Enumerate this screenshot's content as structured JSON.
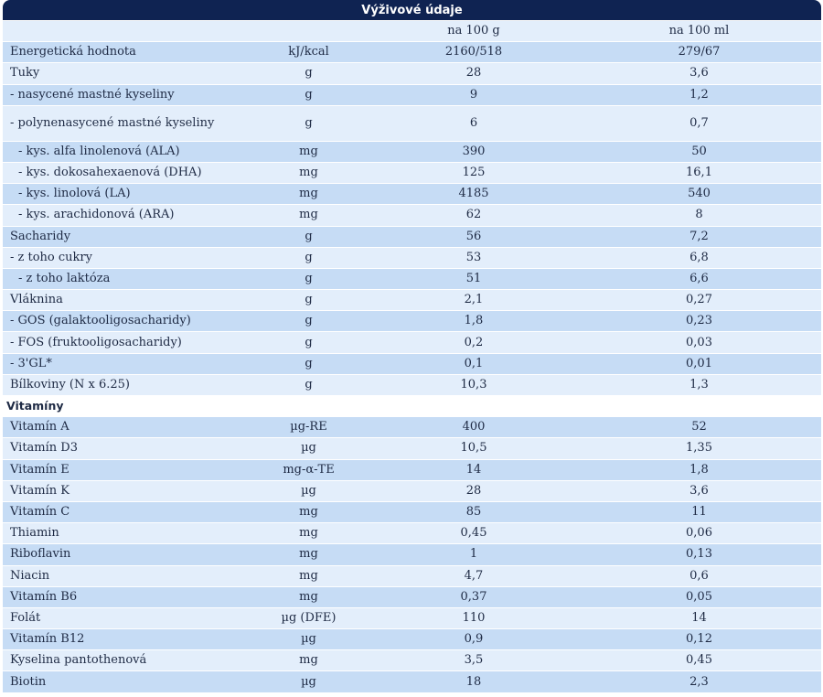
{
  "table": {
    "title": "Výživové údaje",
    "header": {
      "col1": "",
      "col2": "",
      "col3": "na 100 g",
      "col4": "na 100 ml"
    },
    "rows": [
      {
        "label": "Energetická hodnota",
        "unit": "kJ/kcal",
        "per100g": "2160/518",
        "per100ml": "279/67"
      },
      {
        "label": "Tuky",
        "unit": "g",
        "per100g": "28",
        "per100ml": "3,6"
      },
      {
        "label": "- nasycené mastné kyseliny",
        "unit": "g",
        "per100g": "9",
        "per100ml": "1,2"
      },
      {
        "label": "- polynenasycené mastné kyseliny",
        "unit": "g",
        "per100g": "6",
        "per100ml": "0,7"
      },
      {
        "label": "- kys. alfa linolenová (ALA)",
        "unit": "mg",
        "per100g": "390",
        "per100ml": "50"
      },
      {
        "label": "- kys. dokosahexaenová (DHA)",
        "unit": "mg",
        "per100g": "125",
        "per100ml": "16,1"
      },
      {
        "label": "- kys. linolová (LA)",
        "unit": "mg",
        "per100g": "4185",
        "per100ml": "540"
      },
      {
        "label": "- kys. arachidonová (ARA)",
        "unit": "mg",
        "per100g": "62",
        "per100ml": "8"
      },
      {
        "label": "Sacharidy",
        "unit": "g",
        "per100g": "56",
        "per100ml": "7,2"
      },
      {
        "label": "- z toho cukry",
        "unit": "g",
        "per100g": "53",
        "per100ml": "6,8"
      },
      {
        "label": "- z toho laktóza",
        "unit": "g",
        "per100g": "51",
        "per100ml": "6,6"
      },
      {
        "label": "Vláknina",
        "unit": "g",
        "per100g": "2,1",
        "per100ml": "0,27"
      },
      {
        "label": "- GOS (galaktooligosacharidy)",
        "unit": "g",
        "per100g": "1,8",
        "per100ml": "0,23"
      },
      {
        "label": "- FOS (fruktooligosacharidy)",
        "unit": "g",
        "per100g": "0,2",
        "per100ml": "0,03"
      },
      {
        "label": "- 3'GL*",
        "unit": "g",
        "per100g": "0,1",
        "per100ml": "0,01"
      },
      {
        "label": "Bílkoviny (N x 6.25)",
        "unit": "g",
        "per100g": "10,3",
        "per100ml": "1,3"
      },
      {
        "label": "Vitamíny",
        "unit": "",
        "per100g": "",
        "per100ml": ""
      },
      {
        "label": "Vitamín A",
        "unit": "µg-RE",
        "per100g": "400",
        "per100ml": "52"
      },
      {
        "label": "Vitamín D3",
        "unit": "µg",
        "per100g": "10,5",
        "per100ml": "1,35"
      },
      {
        "label": "Vitamín E",
        "unit": "mg-α-TE",
        "per100g": "14",
        "per100ml": "1,8"
      },
      {
        "label": "Vitamín K",
        "unit": "µg",
        "per100g": "28",
        "per100ml": "3,6"
      },
      {
        "label": "Vitamín C",
        "unit": "mg",
        "per100g": "85",
        "per100ml": "11"
      },
      {
        "label": "Thiamin",
        "unit": "mg",
        "per100g": "0,45",
        "per100ml": "0,06"
      },
      {
        "label": "Riboflavin",
        "unit": "mg",
        "per100g": "1",
        "per100ml": "0,13"
      },
      {
        "label": "Niacin",
        "unit": "mg",
        "per100g": "4,7",
        "per100ml": "0,6"
      },
      {
        "label": "Vitamín B6",
        "unit": "mg",
        "per100g": "0,37",
        "per100ml": "0,05"
      },
      {
        "label": "Folát",
        "unit": "µg (DFE)",
        "per100g": "110",
        "per100ml": "14"
      },
      {
        "label": "Vitamín B12",
        "unit": "µg",
        "per100g": "0,9",
        "per100ml": "0,12"
      },
      {
        "label": "Kyselina pantothenová",
        "unit": "mg",
        "per100g": "3,5",
        "per100ml": "0,45"
      },
      {
        "label": "Biotin",
        "unit": "µg",
        "per100g": "18",
        "per100ml": "2,3"
      }
    ]
  }
}
